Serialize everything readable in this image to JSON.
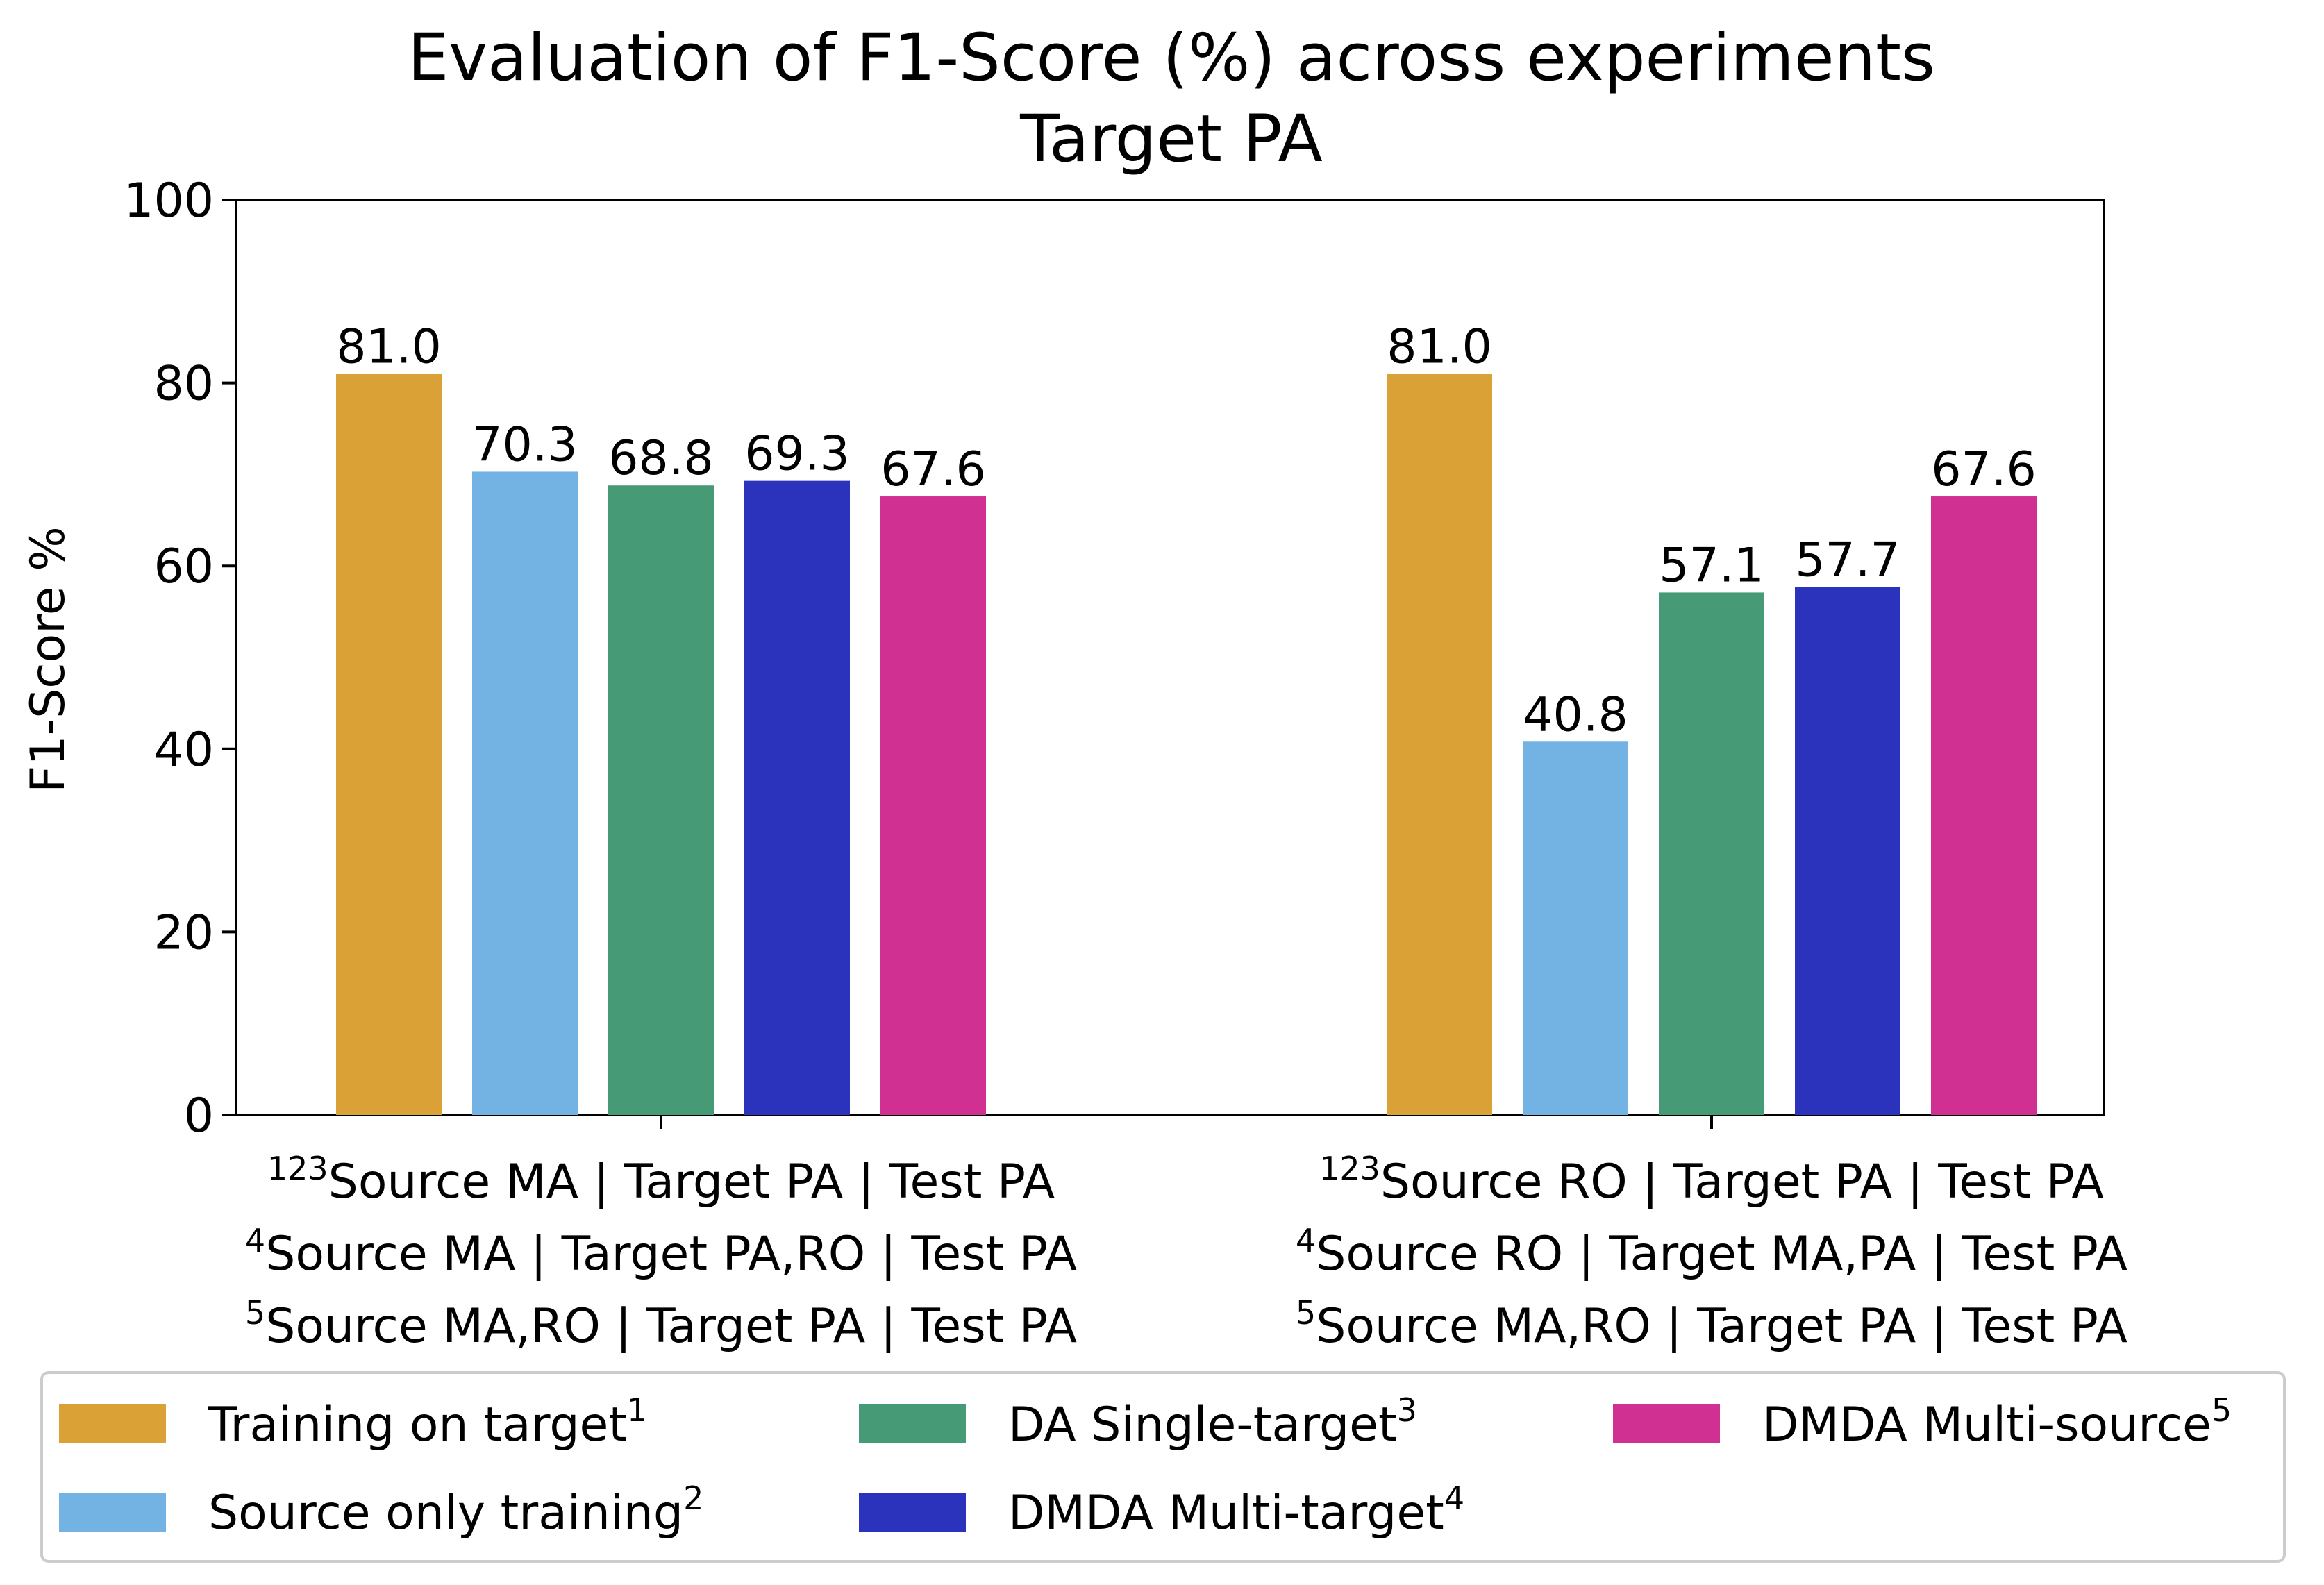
{
  "chart_data": {
    "type": "bar",
    "title": "Evaluation of F1-Score (%) across experiments",
    "subtitle": "Target PA",
    "xlabel": "",
    "ylabel": "F1-Score %",
    "ylim": [
      0,
      100
    ],
    "yticks": [
      "0",
      "20",
      "40",
      "60",
      "80",
      "100"
    ],
    "grid": false,
    "categories": [
      {
        "name": "Source MA",
        "lines": [
          {
            "sup": "123",
            "text": "Source MA | Target PA | Test PA"
          },
          {
            "sup": "4",
            "text": "Source MA | Target PA,RO | Test PA"
          },
          {
            "sup": "5",
            "text": "Source MA,RO | Target PA | Test PA"
          }
        ]
      },
      {
        "name": "Source RO",
        "lines": [
          {
            "sup": "123",
            "text": "Source RO | Target PA | Test PA"
          },
          {
            "sup": "4",
            "text": "Source RO | Target MA,PA | Test PA"
          },
          {
            "sup": "5",
            "text": "Source MA,RO | Target PA | Test PA"
          }
        ]
      }
    ],
    "series": [
      {
        "name": "Training on target",
        "sup": "1",
        "color": "#daa137",
        "values": [
          81.0,
          81.0
        ],
        "labels": [
          "81.0",
          "81.0"
        ]
      },
      {
        "name": "Source only training",
        "sup": "2",
        "color": "#72b3e3",
        "values": [
          70.3,
          40.8
        ],
        "labels": [
          "70.3",
          "40.8"
        ]
      },
      {
        "name": "DA Single-target",
        "sup": "3",
        "color": "#479a76",
        "values": [
          68.8,
          57.1
        ],
        "labels": [
          "68.8",
          "57.1"
        ]
      },
      {
        "name": "DMDA Multi-target",
        "sup": "4",
        "color": "#2b33bd",
        "values": [
          69.3,
          57.7
        ],
        "labels": [
          "69.3",
          "57.7"
        ]
      },
      {
        "name": "DMDA Multi-source",
        "sup": "5",
        "color": "#d03092",
        "values": [
          67.6,
          67.6
        ],
        "labels": [
          "67.6",
          "67.6"
        ]
      }
    ],
    "legend": {
      "placement": "bottom",
      "columns": 3
    }
  }
}
